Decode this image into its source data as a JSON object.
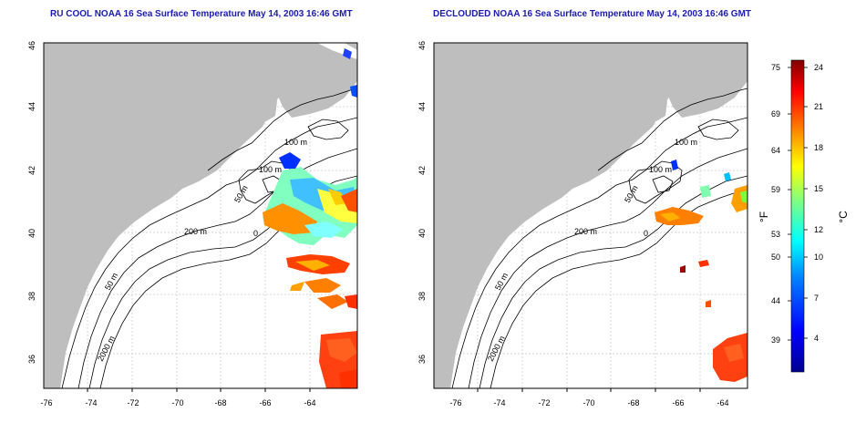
{
  "panels": [
    {
      "title": "RU COOL NOAA 16 Sea Surface Temperature May 14, 2003 16:46 GMT",
      "contour_labels": [
        "100 m",
        "100 m",
        "50 m",
        "200 m",
        "50 m",
        "2000 m",
        "0"
      ]
    },
    {
      "title": "DECLOUDED NOAA 16 Sea Surface Temperature May 14, 2003 16:46 GMT",
      "contour_labels": [
        "100 m",
        "100 m",
        "50 m",
        "200 m",
        "50 m",
        "2000 m",
        "0"
      ]
    }
  ],
  "x_axis": {
    "ticks": [
      "-76",
      "-74",
      "-72",
      "-70",
      "-68",
      "-66",
      "-64"
    ]
  },
  "y_axis": {
    "ticks": [
      "36",
      "38",
      "40",
      "42",
      "44",
      "46"
    ]
  },
  "colorbar": {
    "fahrenheit_label": "°F",
    "celsius_label": "°C",
    "fahrenheit_ticks": [
      "75",
      "69",
      "64",
      "59",
      "53",
      "50",
      "44",
      "39"
    ],
    "celsius_ticks": [
      "24",
      "21",
      "18",
      "15",
      "12",
      "10",
      "7",
      "4"
    ],
    "colors": [
      "#00008f",
      "#0000ff",
      "#0080ff",
      "#00ffff",
      "#80ff80",
      "#ffff00",
      "#ff8000",
      "#ff0000",
      "#800000"
    ]
  },
  "map_colors": {
    "land": "#bebebe",
    "ocean": "#ffffff",
    "contour": "#000000",
    "grid": "#c8c8c8"
  }
}
